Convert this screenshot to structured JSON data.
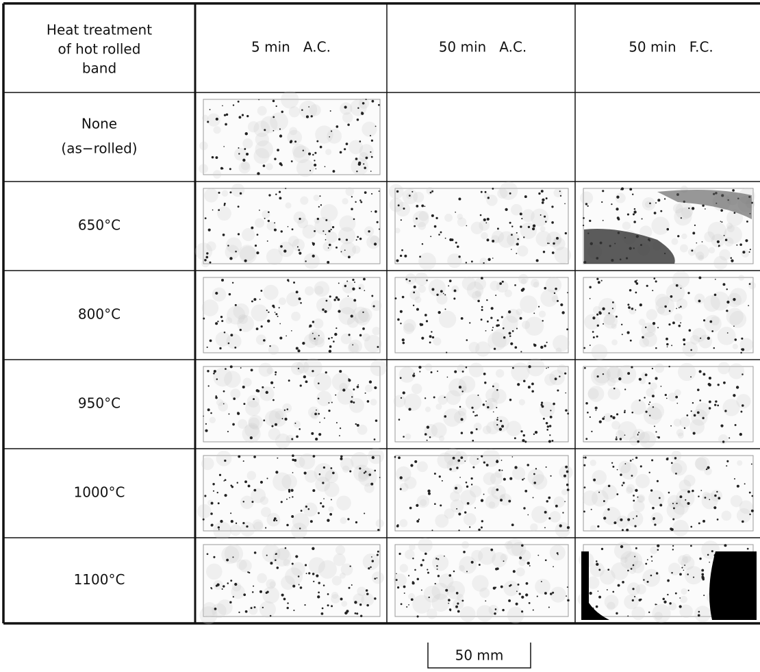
{
  "table": {
    "corner": [
      "Heat treatment",
      "of hot rolled",
      "band"
    ],
    "columns": [
      "5 min   A.C.",
      "50 min   A.C.",
      "50 min   F.C."
    ],
    "rows": [
      [
        "None",
        "(as−rolled)"
      ],
      [
        "650°C"
      ],
      [
        "800°C"
      ],
      [
        "950°C"
      ],
      [
        "1000°C"
      ],
      [
        "1100°C"
      ]
    ]
  },
  "scale_bar": "50 mm"
}
